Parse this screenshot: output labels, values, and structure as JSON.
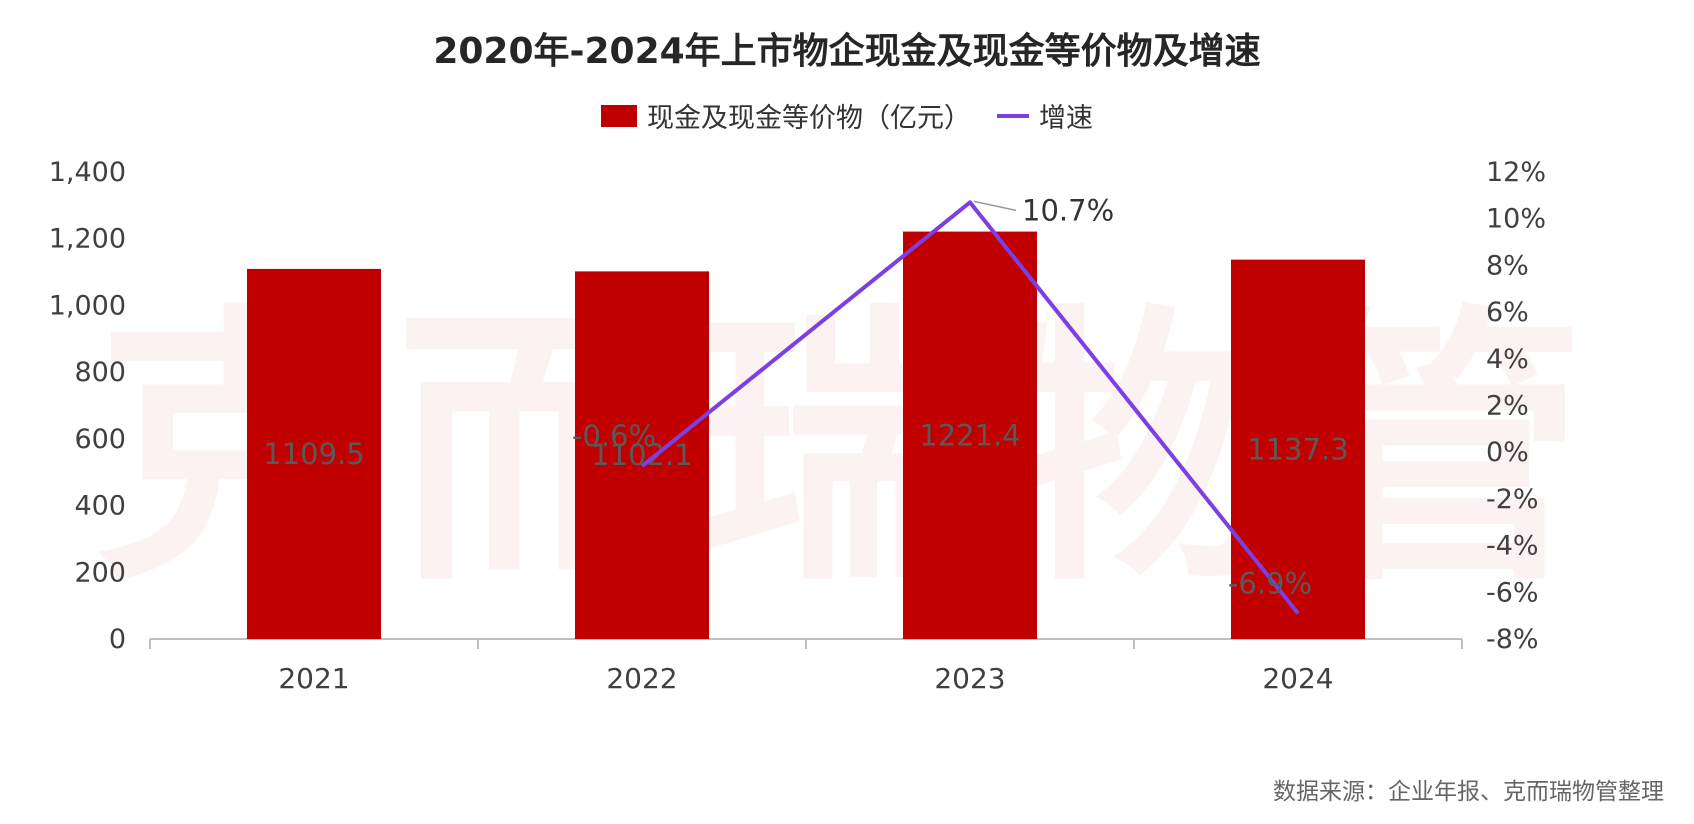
{
  "title": "2020年-2024年上市物企现金及现金等价物及增速",
  "legend": {
    "bar_label": "现金及现金等价物（亿元）",
    "line_label": "增速"
  },
  "source": "数据来源：企业年报、克而瑞物管整理",
  "watermark": "克而瑞物管",
  "colors": {
    "bar": "#C00000",
    "line": "#7B3FE4",
    "axis": "#BFBFBF",
    "tick_text": "#404040",
    "bar_label_text": "#5a5a5a"
  },
  "chart_data": {
    "type": "bar",
    "categories": [
      "2021",
      "2022",
      "2023",
      "2024"
    ],
    "series": [
      {
        "name": "现金及现金等价物（亿元）",
        "type": "bar",
        "axis": "left",
        "values": [
          1109.5,
          1102.1,
          1221.4,
          1137.3
        ],
        "labels": [
          "1109.5",
          "1102.1",
          "1221.4",
          "1137.3"
        ]
      },
      {
        "name": "增速",
        "type": "line",
        "axis": "right",
        "x": [
          "2022",
          "2023",
          "2024"
        ],
        "values": [
          -0.6,
          10.7,
          -6.9
        ],
        "labels": [
          "-0.6%",
          "10.7%",
          "-6.9%"
        ]
      }
    ],
    "y_left": {
      "ylim": [
        0,
        1400
      ],
      "ticks": [
        0,
        200,
        400,
        600,
        800,
        1000,
        1200,
        1400
      ],
      "tick_labels": [
        "0",
        "200",
        "400",
        "600",
        "800",
        "1,000",
        "1,200",
        "1,400"
      ]
    },
    "y_right": {
      "ylim": [
        -8,
        12
      ],
      "ticks": [
        -8,
        -6,
        -4,
        -2,
        0,
        2,
        4,
        6,
        8,
        10,
        12
      ],
      "tick_labels": [
        "-8%",
        "-6%",
        "-4%",
        "-2%",
        "0%",
        "2%",
        "4%",
        "6%",
        "8%",
        "10%",
        "12%"
      ]
    },
    "grid": false,
    "legend_position": "top-center"
  }
}
